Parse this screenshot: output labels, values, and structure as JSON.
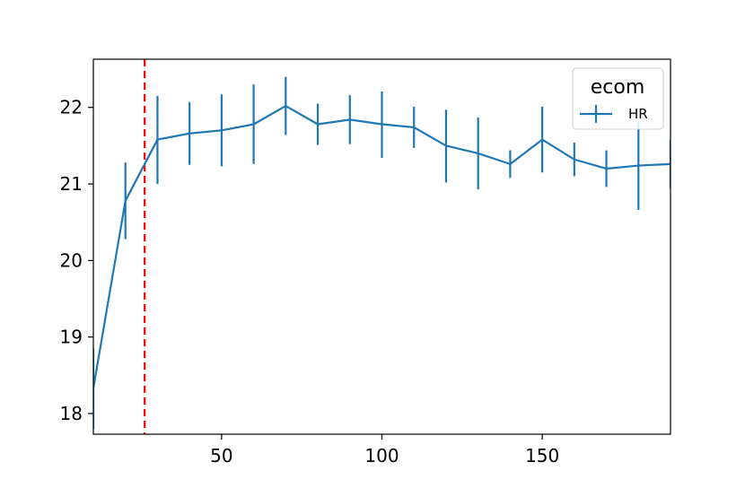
{
  "chart_data": {
    "type": "line",
    "title": "",
    "xlabel": "",
    "ylabel": "",
    "xlim": [
      10,
      190
    ],
    "ylim": [
      17.73,
      22.63
    ],
    "xticks": [
      50,
      100,
      150
    ],
    "yticks": [
      18,
      19,
      20,
      21,
      22
    ],
    "grid": false,
    "legend": {
      "title": "ecom",
      "placement": "top-right"
    },
    "vline": {
      "x": 26,
      "color": "#ff0000",
      "style": "dashed"
    },
    "series": [
      {
        "name": "HR",
        "color": "#1f77b4",
        "x": [
          10,
          20,
          30,
          40,
          50,
          60,
          70,
          80,
          90,
          100,
          110,
          120,
          130,
          140,
          150,
          160,
          170,
          180,
          190
        ],
        "y": [
          18.33,
          20.78,
          21.58,
          21.66,
          21.7,
          21.78,
          22.02,
          21.78,
          21.84,
          21.78,
          21.74,
          21.5,
          21.4,
          21.26,
          21.58,
          21.32,
          21.2,
          21.24,
          21.26
        ],
        "y_low": [
          17.8,
          20.28,
          21.0,
          21.25,
          21.23,
          21.26,
          21.64,
          21.51,
          21.52,
          21.34,
          21.47,
          21.02,
          20.93,
          21.08,
          21.15,
          21.1,
          20.96,
          20.66,
          20.94
        ],
        "y_high": [
          18.85,
          21.28,
          22.15,
          22.07,
          22.17,
          22.3,
          22.4,
          22.05,
          22.16,
          22.21,
          22.01,
          21.97,
          21.87,
          21.44,
          22.01,
          21.54,
          21.44,
          21.82,
          21.58
        ]
      }
    ]
  }
}
